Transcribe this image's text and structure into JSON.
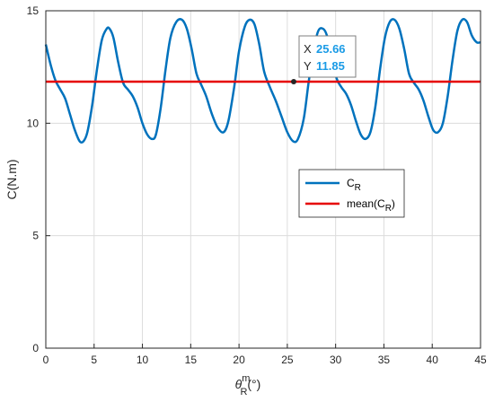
{
  "chart_data": {
    "type": "line",
    "xlabel_main": "θ",
    "xlabel_sup": "m",
    "xlabel_sub": "R",
    "xlabel_unit": "(°)",
    "ylabel": "C(N.m)",
    "xlim": [
      0,
      45
    ],
    "ylim": [
      0,
      15
    ],
    "xticks": [
      "0",
      "5",
      "10",
      "15",
      "20",
      "25",
      "30",
      "35",
      "40",
      "45"
    ],
    "yticks": [
      "0",
      "5",
      "10",
      "15"
    ],
    "grid": true,
    "legend_placement": "center-right",
    "series": [
      {
        "name_main": "C",
        "name_sub": "R",
        "color": "#0072BD",
        "x": [
          0,
          0.5,
          1,
          1.5,
          2,
          2.5,
          3,
          3.5,
          3.9,
          4.3,
          4.8,
          5.3,
          5.8,
          6.3,
          6.6,
          7.0,
          7.5,
          8.0,
          8.5,
          9.0,
          9.5,
          10.0,
          10.5,
          11.0,
          11.4,
          11.9,
          12.4,
          12.9,
          13.5,
          14.1,
          14.6,
          15.1,
          15.6,
          16.1,
          16.6,
          17.2,
          17.8,
          18.4,
          18.9,
          19.5,
          20.0,
          20.6,
          21.1,
          21.6,
          22.1,
          22.6,
          23.2,
          23.8,
          24.4,
          25.0,
          25.6,
          26.1,
          26.7,
          27.2,
          27.7,
          28.2,
          28.7,
          29.1,
          29.6,
          30.1,
          30.6,
          31.1,
          31.6,
          32.1,
          32.6,
          33.1,
          33.6,
          34.1,
          34.6,
          35.1,
          35.6,
          36.1,
          36.6,
          37.1,
          37.6,
          38.1,
          38.6,
          39.1,
          39.6,
          40.1,
          40.6,
          41.1,
          41.6,
          42.1,
          42.6,
          43.1,
          43.6,
          44.1,
          44.6,
          45.0
        ],
        "y": [
          13.5,
          12.6,
          11.9,
          11.5,
          11.1,
          10.4,
          9.7,
          9.2,
          9.2,
          9.6,
          10.8,
          12.4,
          13.7,
          14.2,
          14.2,
          13.8,
          12.7,
          11.8,
          11.5,
          11.2,
          10.7,
          10.0,
          9.5,
          9.3,
          9.5,
          10.7,
          12.4,
          13.8,
          14.5,
          14.6,
          14.2,
          13.3,
          12.2,
          11.7,
          11.2,
          10.4,
          9.8,
          9.6,
          10.1,
          11.6,
          13.2,
          14.3,
          14.6,
          14.4,
          13.5,
          12.3,
          11.6,
          11.0,
          10.3,
          9.6,
          9.2,
          9.3,
          10.2,
          11.8,
          13.2,
          14.1,
          14.2,
          13.9,
          13.0,
          12.0,
          11.6,
          11.3,
          10.8,
          10.1,
          9.5,
          9.3,
          9.6,
          10.7,
          12.4,
          13.8,
          14.5,
          14.6,
          14.2,
          13.3,
          12.2,
          11.8,
          11.5,
          11.0,
          10.3,
          9.7,
          9.6,
          10.0,
          11.2,
          12.8,
          14.1,
          14.6,
          14.5,
          13.9,
          13.6,
          13.6
        ]
      },
      {
        "name_main": "mean(C",
        "name_sub": "R",
        "name_end": ")",
        "color": "#e60000",
        "x": [
          0,
          45
        ],
        "y": [
          11.85,
          11.85
        ]
      }
    ],
    "datatip": {
      "x_label": "X",
      "x_value": "25.66",
      "y_label": "Y",
      "y_value": "11.85",
      "x": 25.66,
      "y": 11.85,
      "value_color": "#1a9be6"
    }
  }
}
